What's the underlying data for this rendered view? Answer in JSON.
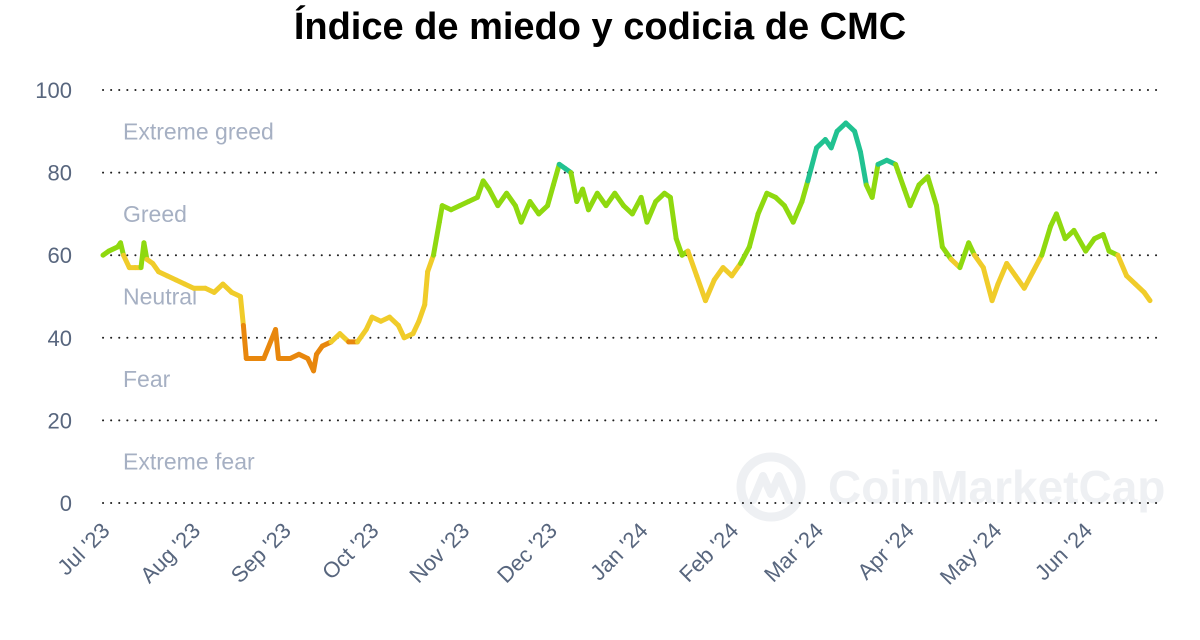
{
  "title": "Índice de miedo y codicia de CMC",
  "watermark": "CoinMarketCap",
  "colors": {
    "extreme_fear": "#e04b2f",
    "fear": "#e8870d",
    "neutral": "#f0cc2a",
    "greed": "#8fd90f",
    "extreme_greed": "#21c291"
  },
  "chart_data": {
    "type": "line",
    "title": "Índice de miedo y codicia de CMC",
    "ylim": [
      0,
      100
    ],
    "yticks": [
      "0",
      "20",
      "40",
      "60",
      "80",
      "100"
    ],
    "grid": true,
    "zones": [
      {
        "label": "Extreme greed",
        "range": [
          80,
          100
        ]
      },
      {
        "label": "Greed",
        "range": [
          60,
          80
        ]
      },
      {
        "label": "Neutral",
        "range": [
          40,
          60
        ]
      },
      {
        "label": "Fear",
        "range": [
          20,
          40
        ]
      },
      {
        "label": "Extreme fear",
        "range": [
          0,
          20
        ]
      }
    ],
    "xticks": [
      {
        "label": "Jul '23",
        "date": "2023-07-01"
      },
      {
        "label": "Aug '23",
        "date": "2023-08-01"
      },
      {
        "label": "Sep '23",
        "date": "2023-09-01"
      },
      {
        "label": "Oct '23",
        "date": "2023-10-01"
      },
      {
        "label": "Nov '23",
        "date": "2023-11-01"
      },
      {
        "label": "Dec '23",
        "date": "2023-12-01"
      },
      {
        "label": "Jan '24",
        "date": "2024-01-01"
      },
      {
        "label": "Feb '24",
        "date": "2024-02-01"
      },
      {
        "label": "Mar '24",
        "date": "2024-03-01"
      },
      {
        "label": "Apr '24",
        "date": "2024-04-01"
      },
      {
        "label": "May '24",
        "date": "2024-05-01"
      },
      {
        "label": "Jun '24",
        "date": "2024-06-01"
      }
    ],
    "series": [
      {
        "points": [
          [
            "2023-07-01",
            60
          ],
          [
            "2023-07-03",
            61
          ],
          [
            "2023-07-06",
            62
          ],
          [
            "2023-07-07",
            63
          ],
          [
            "2023-07-08",
            60
          ],
          [
            "2023-07-10",
            57
          ],
          [
            "2023-07-12",
            57
          ],
          [
            "2023-07-14",
            57
          ],
          [
            "2023-07-15",
            63
          ],
          [
            "2023-07-16",
            59
          ],
          [
            "2023-07-18",
            58
          ],
          [
            "2023-07-20",
            56
          ],
          [
            "2023-07-23",
            55
          ],
          [
            "2023-07-26",
            54
          ],
          [
            "2023-07-29",
            53
          ],
          [
            "2023-08-01",
            52
          ],
          [
            "2023-08-05",
            52
          ],
          [
            "2023-08-08",
            51
          ],
          [
            "2023-08-11",
            53
          ],
          [
            "2023-08-14",
            51
          ],
          [
            "2023-08-17",
            50
          ],
          [
            "2023-08-18",
            43
          ],
          [
            "2023-08-19",
            35
          ],
          [
            "2023-08-22",
            35
          ],
          [
            "2023-08-25",
            35
          ],
          [
            "2023-08-29",
            42
          ],
          [
            "2023-08-30",
            35
          ],
          [
            "2023-09-03",
            35
          ],
          [
            "2023-09-06",
            36
          ],
          [
            "2023-09-09",
            35
          ],
          [
            "2023-09-11",
            32
          ],
          [
            "2023-09-12",
            36
          ],
          [
            "2023-09-14",
            38
          ],
          [
            "2023-09-17",
            39
          ],
          [
            "2023-09-20",
            41
          ],
          [
            "2023-09-23",
            39
          ],
          [
            "2023-09-26",
            39
          ],
          [
            "2023-09-29",
            42
          ],
          [
            "2023-10-01",
            45
          ],
          [
            "2023-10-04",
            44
          ],
          [
            "2023-10-07",
            45
          ],
          [
            "2023-10-10",
            43
          ],
          [
            "2023-10-12",
            40
          ],
          [
            "2023-10-15",
            41
          ],
          [
            "2023-10-17",
            44
          ],
          [
            "2023-10-19",
            48
          ],
          [
            "2023-10-20",
            56
          ],
          [
            "2023-10-22",
            60
          ],
          [
            "2023-10-24",
            68
          ],
          [
            "2023-10-25",
            72
          ],
          [
            "2023-10-28",
            71
          ],
          [
            "2023-10-31",
            72
          ],
          [
            "2023-11-03",
            73
          ],
          [
            "2023-11-06",
            74
          ],
          [
            "2023-11-08",
            78
          ],
          [
            "2023-11-10",
            76
          ],
          [
            "2023-11-13",
            72
          ],
          [
            "2023-11-16",
            75
          ],
          [
            "2023-11-19",
            72
          ],
          [
            "2023-11-21",
            68
          ],
          [
            "2023-11-24",
            73
          ],
          [
            "2023-11-27",
            70
          ],
          [
            "2023-11-30",
            72
          ],
          [
            "2023-12-02",
            77
          ],
          [
            "2023-12-04",
            82
          ],
          [
            "2023-12-06",
            81
          ],
          [
            "2023-12-08",
            80
          ],
          [
            "2023-12-10",
            73
          ],
          [
            "2023-12-12",
            76
          ],
          [
            "2023-12-14",
            71
          ],
          [
            "2023-12-17",
            75
          ],
          [
            "2023-12-20",
            72
          ],
          [
            "2023-12-23",
            75
          ],
          [
            "2023-12-26",
            72
          ],
          [
            "2023-12-29",
            70
          ],
          [
            "2024-01-01",
            74
          ],
          [
            "2024-01-03",
            68
          ],
          [
            "2024-01-06",
            73
          ],
          [
            "2024-01-09",
            75
          ],
          [
            "2024-01-11",
            74
          ],
          [
            "2024-01-13",
            64
          ],
          [
            "2024-01-15",
            60
          ],
          [
            "2024-01-17",
            61
          ],
          [
            "2024-01-20",
            55
          ],
          [
            "2024-01-23",
            49
          ],
          [
            "2024-01-26",
            54
          ],
          [
            "2024-01-29",
            57
          ],
          [
            "2024-02-01",
            55
          ],
          [
            "2024-02-04",
            58
          ],
          [
            "2024-02-07",
            62
          ],
          [
            "2024-02-10",
            70
          ],
          [
            "2024-02-13",
            75
          ],
          [
            "2024-02-16",
            74
          ],
          [
            "2024-02-19",
            72
          ],
          [
            "2024-02-22",
            68
          ],
          [
            "2024-02-25",
            73
          ],
          [
            "2024-02-27",
            78
          ],
          [
            "2024-03-01",
            86
          ],
          [
            "2024-03-04",
            88
          ],
          [
            "2024-03-06",
            86
          ],
          [
            "2024-03-08",
            90
          ],
          [
            "2024-03-11",
            92
          ],
          [
            "2024-03-14",
            90
          ],
          [
            "2024-03-16",
            85
          ],
          [
            "2024-03-18",
            77
          ],
          [
            "2024-03-20",
            74
          ],
          [
            "2024-03-22",
            82
          ],
          [
            "2024-03-25",
            83
          ],
          [
            "2024-03-28",
            82
          ],
          [
            "2024-03-31",
            76
          ],
          [
            "2024-04-02",
            72
          ],
          [
            "2024-04-05",
            77
          ],
          [
            "2024-04-08",
            79
          ],
          [
            "2024-04-11",
            72
          ],
          [
            "2024-04-13",
            62
          ],
          [
            "2024-04-16",
            59
          ],
          [
            "2024-04-19",
            57
          ],
          [
            "2024-04-22",
            63
          ],
          [
            "2024-04-24",
            60
          ],
          [
            "2024-04-27",
            57
          ],
          [
            "2024-04-30",
            49
          ],
          [
            "2024-05-02",
            53
          ],
          [
            "2024-05-05",
            58
          ],
          [
            "2024-05-08",
            55
          ],
          [
            "2024-05-11",
            52
          ],
          [
            "2024-05-14",
            56
          ],
          [
            "2024-05-17",
            60
          ],
          [
            "2024-05-20",
            67
          ],
          [
            "2024-05-22",
            70
          ],
          [
            "2024-05-25",
            64
          ],
          [
            "2024-05-28",
            66
          ],
          [
            "2024-06-01",
            61
          ],
          [
            "2024-06-04",
            64
          ],
          [
            "2024-06-07",
            65
          ],
          [
            "2024-06-09",
            61
          ],
          [
            "2024-06-12",
            60
          ],
          [
            "2024-06-15",
            55
          ],
          [
            "2024-06-18",
            53
          ],
          [
            "2024-06-21",
            51
          ],
          [
            "2024-06-23",
            49
          ]
        ]
      }
    ]
  }
}
